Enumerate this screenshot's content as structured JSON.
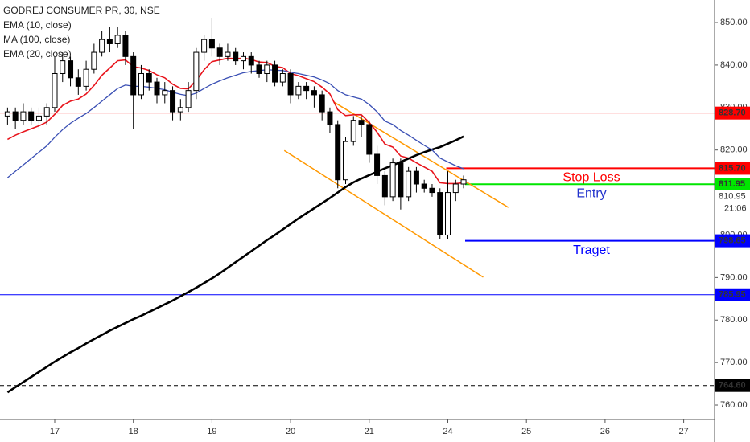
{
  "chart_data": {
    "type": "candlestick",
    "title": "GODREJ CONSUMER PR, 30, NSE",
    "x": [
      -0.6,
      -0.5,
      -0.4,
      -0.3,
      -0.2,
      -0.1,
      0,
      0.1,
      0.2,
      0.3,
      0.4,
      0.5,
      0.6,
      0.7,
      0.8,
      0.9,
      1,
      1.1,
      1.2,
      1.3,
      1.4,
      1.5,
      1.6,
      1.7,
      1.8,
      1.9,
      2,
      2.1,
      2.2,
      2.3,
      2.4,
      2.5,
      2.6,
      2.7,
      2.8,
      2.9,
      3,
      3.1,
      3.2,
      3.3,
      3.4,
      3.5,
      3.6,
      3.7,
      3.8,
      3.9,
      4,
      4.1,
      4.2,
      4.3,
      4.4,
      4.5,
      4.6,
      4.7,
      4.8,
      4.9,
      5,
      5.1,
      5.2
    ],
    "open": [
      828,
      829,
      827,
      829,
      827,
      828,
      830,
      838,
      841,
      837,
      835,
      839,
      843,
      846,
      845,
      847,
      842,
      833,
      838,
      836,
      833,
      834,
      829,
      830,
      834,
      843,
      846,
      844,
      842,
      843,
      841,
      842,
      840,
      838,
      840,
      836,
      838,
      833,
      835,
      834,
      833,
      829,
      826,
      813,
      822,
      827,
      826,
      819,
      814,
      809,
      817,
      809,
      815,
      812,
      811,
      810,
      800,
      810,
      812
    ],
    "high": [
      830,
      830,
      831,
      830,
      830,
      831,
      842,
      843,
      842,
      839,
      841,
      845,
      848,
      849,
      849,
      848,
      843,
      840,
      839,
      837,
      836,
      835,
      832,
      836,
      844,
      847,
      851,
      845,
      845,
      844,
      843,
      843,
      841,
      841,
      841,
      839,
      839,
      836,
      836,
      835,
      834,
      830,
      827,
      823,
      828,
      828,
      827,
      821,
      815,
      818,
      818,
      816,
      816,
      813,
      812,
      811,
      815,
      813,
      814
    ],
    "low": [
      826,
      825,
      826,
      826,
      825,
      826,
      829,
      836,
      835,
      833,
      834,
      838,
      842,
      843,
      844,
      840,
      825,
      832,
      834,
      831,
      831,
      827,
      827,
      829,
      832,
      841,
      842,
      840,
      841,
      840,
      839,
      838,
      837,
      836,
      835,
      835,
      831,
      832,
      832,
      830,
      827,
      824,
      811,
      812,
      821,
      823,
      817,
      812,
      807,
      808,
      806,
      808,
      810,
      810,
      809,
      799,
      799,
      808,
      811
    ],
    "close": [
      829,
      827,
      829,
      827,
      828,
      830,
      838,
      841,
      837,
      835,
      839,
      843,
      846,
      845,
      847,
      842,
      833,
      838,
      836,
      833,
      834,
      829,
      830,
      834,
      843,
      846,
      844,
      842,
      843,
      841,
      842,
      840,
      838,
      840,
      836,
      838,
      833,
      835,
      834,
      833,
      829,
      826,
      813,
      822,
      827,
      826,
      819,
      814,
      809,
      817,
      809,
      815,
      812,
      811,
      810,
      800,
      810,
      812,
      813
    ],
    "up_color": "#ffffff",
    "down_color": "#000000",
    "series": [
      {
        "name": "EMA (10, close)",
        "color": "#e8141c",
        "values": [
          822.5,
          823.5,
          824.3,
          825,
          825.7,
          826.6,
          828.4,
          830.5,
          831.5,
          832,
          833.2,
          835.2,
          837.6,
          839.3,
          841,
          841.2,
          839.6,
          839.3,
          838.7,
          837.7,
          837,
          835.5,
          834.5,
          834.4,
          836.4,
          838.9,
          840.8,
          841.2,
          841.6,
          841.5,
          841.6,
          841.3,
          840.7,
          840.6,
          839.7,
          839.4,
          838,
          837.5,
          836.8,
          836.1,
          834.8,
          833.2,
          829.5,
          828.1,
          828.3,
          828.3,
          826.5,
          824.2,
          821.4,
          820.7,
          818.6,
          818.1,
          817,
          816,
          815,
          812.3,
          812.1,
          812.1,
          812.3
        ]
      },
      {
        "name": "MA (100, close)",
        "color": "#000000",
        "values": [
          763,
          764.2,
          765.4,
          766.6,
          767.8,
          769,
          770.2,
          771.3,
          772.4,
          773.4,
          774.5,
          775.5,
          776.5,
          777.5,
          778.4,
          779.3,
          780.2,
          781,
          781.9,
          782.8,
          783.7,
          784.6,
          785.6,
          786.6,
          787.6,
          788.7,
          789.8,
          791,
          792.3,
          793.6,
          794.9,
          796.2,
          797.5,
          798.8,
          800,
          801.3,
          802.6,
          803.9,
          805.1,
          806.3,
          807.5,
          808.7,
          810,
          811.3,
          812.4,
          813.3,
          814.1,
          814.9,
          815.7,
          816.4,
          817.2,
          818,
          818.8,
          819.5,
          820.1,
          820.7,
          821.5,
          822.3,
          823.2
        ]
      },
      {
        "name": "EMA (20, close)",
        "color": "#3a4fb4",
        "values": [
          813.5,
          815,
          816.5,
          818,
          819.5,
          821,
          823,
          824.8,
          826.3,
          827.5,
          828.6,
          830,
          831.5,
          833,
          834.5,
          835.3,
          835,
          835,
          834.8,
          834.5,
          834.2,
          833.6,
          833.1,
          832.8,
          833.4,
          834.5,
          835.5,
          836.3,
          837,
          837.6,
          838.2,
          838.5,
          838.7,
          838.9,
          838.8,
          838.7,
          838.3,
          838,
          837.6,
          837.2,
          836.5,
          835.6,
          834,
          833,
          832.5,
          832,
          830.7,
          829,
          826.8,
          826,
          824.6,
          823.5,
          822.3,
          821.1,
          820,
          818.1,
          817.2,
          816.3,
          815.6
        ]
      }
    ],
    "xlim": [
      -0.696,
      8.393
    ],
    "ylim": [
      756.6,
      855.3
    ],
    "xticks": [
      {
        "value": 0,
        "label": "17"
      },
      {
        "value": 1,
        "label": "18"
      },
      {
        "value": 2,
        "label": "19"
      },
      {
        "value": 3,
        "label": "20"
      },
      {
        "value": 4,
        "label": "21"
      },
      {
        "value": 5,
        "label": "24"
      },
      {
        "value": 6,
        "label": "25"
      },
      {
        "value": 7,
        "label": "26"
      },
      {
        "value": 8,
        "label": "27"
      }
    ],
    "yticks": [
      {
        "value": 760,
        "label": "760.00"
      },
      {
        "value": 770,
        "label": "770.00"
      },
      {
        "value": 780,
        "label": "780.00"
      },
      {
        "value": 790,
        "label": "790.00"
      },
      {
        "value": 800,
        "label": "800.00"
      },
      {
        "value": 810,
        "label": "810.00"
      },
      {
        "value": 820,
        "label": "820.00"
      },
      {
        "value": 830,
        "label": "830.00"
      },
      {
        "value": 840,
        "label": "840.00"
      },
      {
        "value": 850,
        "label": "850.00"
      }
    ],
    "levels": [
      {
        "value": 828.7,
        "label": "828.70",
        "color": "#ff0000"
      },
      {
        "value": 815.7,
        "label": "815.70",
        "color": "#ff0000",
        "x_start": 4.98,
        "text": "Stop Loss"
      },
      {
        "value": 811.95,
        "label": "811.95",
        "color": "#00e600",
        "x_start": 5.22,
        "text": "Entry"
      },
      {
        "value": 798.65,
        "label": "798.65",
        "color": "#0000ff",
        "x_start": 5.22,
        "text": "Traget"
      },
      {
        "value": 785.95,
        "label": "785.95",
        "color": "#0000ff"
      },
      {
        "value": 764.6,
        "label": "764.60",
        "color": "#000000",
        "style": "dashed"
      }
    ],
    "trendlines": [
      {
        "color": "#ff9800",
        "x": [
          3.55,
          5.77
        ],
        "y": [
          831.3,
          806.5
        ]
      },
      {
        "color": "#ff9800",
        "x": [
          2.92,
          5.45
        ],
        "y": [
          819.9,
          790.1
        ]
      }
    ],
    "last_price": {
      "value": 810.95,
      "label": "810.95"
    },
    "countdown": "21:06"
  }
}
